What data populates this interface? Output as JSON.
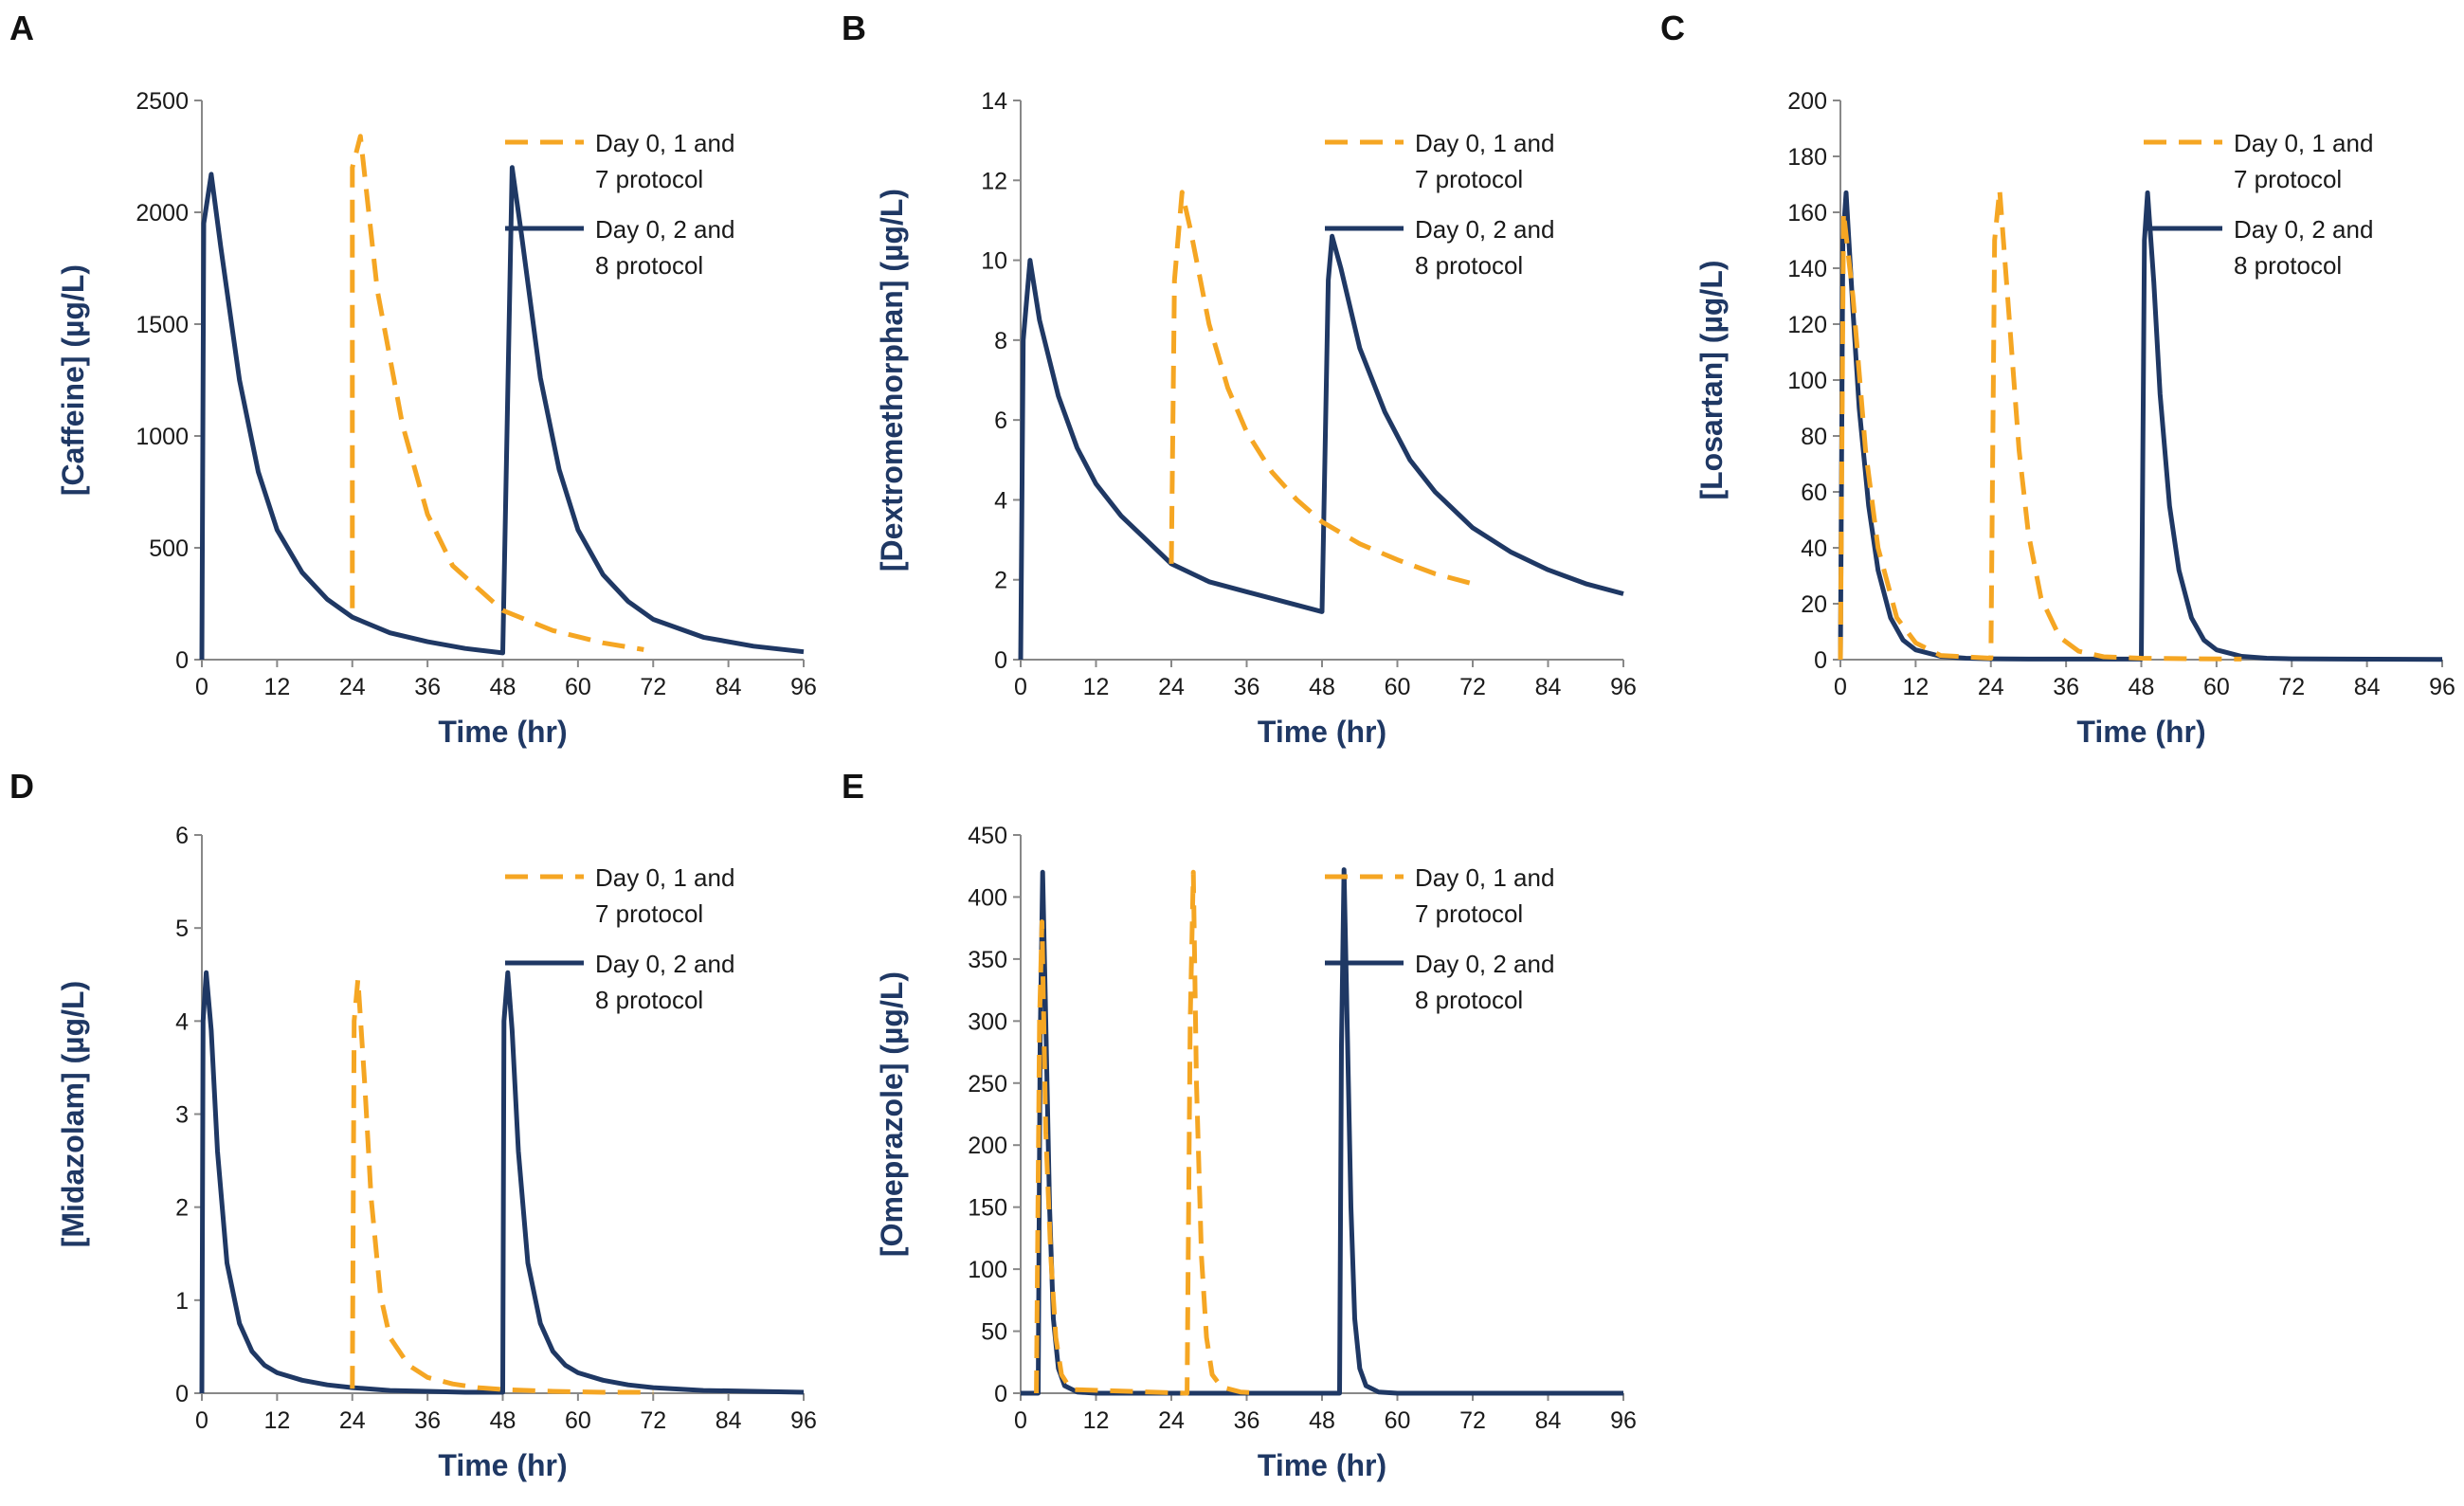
{
  "figure": {
    "colors": {
      "series1": "#F5A623",
      "series2": "#1F3864",
      "axis": "#888888",
      "text": "#1a1a1a",
      "label": "#1F3864"
    }
  },
  "chart_data": [
    {
      "panel": "A",
      "type": "line",
      "xlabel": "Time (hr)",
      "ylabel": "[Caffeine] (µg/L)",
      "xlim": [
        0,
        96
      ],
      "ylim": [
        0,
        2500
      ],
      "xticks": [
        0,
        12,
        24,
        36,
        48,
        60,
        72,
        84,
        96
      ],
      "yticks": [
        0,
        500,
        1000,
        1500,
        2000,
        2500
      ],
      "legend": [
        "Day 0, 1 and 7 protocol",
        "Day 0, 2 and 8 protocol"
      ],
      "legend_lines": [
        [
          "Day 0, 1 and",
          "7 protocol"
        ],
        [
          "Day 0, 2 and",
          "8 protocol"
        ]
      ],
      "series": [
        {
          "name": "Day 0, 1 and 7 protocol",
          "style": "dashed",
          "x": [
            24,
            24,
            25.3,
            28,
            32,
            36,
            40,
            48,
            56,
            64,
            70.5
          ],
          "y": [
            230,
            2200,
            2340,
            1650,
            1050,
            650,
            420,
            220,
            130,
            75,
            45
          ]
        },
        {
          "name": "Day 0, 2 and 8 protocol",
          "style": "solid",
          "x": [
            0,
            0.3,
            1.5,
            3,
            6,
            9,
            12,
            16,
            20,
            24,
            30,
            36,
            42,
            48,
            48,
            49.5,
            51,
            54,
            57,
            60,
            64,
            68,
            72,
            80,
            88,
            96
          ],
          "y": [
            0,
            1950,
            2170,
            1850,
            1250,
            840,
            580,
            390,
            270,
            190,
            120,
            80,
            50,
            30,
            30,
            2200,
            1900,
            1260,
            850,
            580,
            380,
            260,
            180,
            100,
            60,
            35
          ]
        }
      ]
    },
    {
      "panel": "B",
      "type": "line",
      "xlabel": "Time (hr)",
      "ylabel": "[Dextromethorphan] (µg/L)",
      "xlim": [
        0,
        96
      ],
      "ylim": [
        0,
        14
      ],
      "xticks": [
        0,
        12,
        24,
        36,
        48,
        60,
        72,
        84,
        96
      ],
      "yticks": [
        0,
        2,
        4,
        6,
        8,
        10,
        12,
        14
      ],
      "legend": [
        "Day 0, 1 and 7 protocol",
        "Day 0, 2 and 8 protocol"
      ],
      "legend_lines": [
        [
          "Day 0, 1 and",
          "7 protocol"
        ],
        [
          "Day 0, 2 and",
          "8 protocol"
        ]
      ],
      "series": [
        {
          "name": "Day 0, 1 and 7 protocol",
          "style": "dashed",
          "x": [
            24,
            24.5,
            25.7,
            27,
            30,
            33,
            36,
            40,
            44,
            48,
            54,
            60,
            66,
            72
          ],
          "y": [
            2.4,
            9.5,
            11.7,
            10.8,
            8.4,
            6.8,
            5.7,
            4.7,
            4.0,
            3.45,
            2.9,
            2.5,
            2.15,
            1.9
          ]
        },
        {
          "name": "Day 0, 2 and 8 protocol",
          "style": "solid",
          "x": [
            0,
            0.4,
            1.5,
            3,
            6,
            9,
            12,
            16,
            20,
            24,
            30,
            36,
            42,
            48,
            48,
            49,
            49.6,
            51,
            54,
            58,
            62,
            66,
            72,
            78,
            84,
            90,
            96
          ],
          "y": [
            0,
            8.0,
            10.0,
            8.5,
            6.6,
            5.3,
            4.4,
            3.6,
            3.0,
            2.4,
            1.95,
            1.7,
            1.45,
            1.2,
            1.2,
            9.5,
            10.6,
            9.8,
            7.8,
            6.2,
            5.0,
            4.2,
            3.3,
            2.7,
            2.25,
            1.9,
            1.65
          ]
        }
      ]
    },
    {
      "panel": "C",
      "type": "line",
      "xlabel": "Time (hr)",
      "ylabel": "[Losartan] (µg/L)",
      "xlim": [
        0,
        96
      ],
      "ylim": [
        0,
        200
      ],
      "xticks": [
        0,
        12,
        24,
        36,
        48,
        60,
        72,
        84,
        96
      ],
      "yticks": [
        0,
        20,
        40,
        60,
        80,
        100,
        120,
        140,
        160,
        180,
        200
      ],
      "legend": [
        "Day 0, 1 and 7 protocol",
        "Day 0, 2 and 8 protocol"
      ],
      "legend_lines": [
        [
          "Day 0, 1 and",
          "7 protocol"
        ],
        [
          "Day 0, 2 and",
          "8 protocol"
        ]
      ],
      "series": [
        {
          "name": "Day 0, 1 and 7 protocol",
          "style": "dashed",
          "x": [
            0,
            0.5,
            2,
            4,
            6,
            9,
            12,
            16,
            24,
            24,
            24.6,
            25.4,
            27,
            28.5,
            30,
            32,
            35,
            38,
            42,
            48,
            56,
            64
          ],
          "y": [
            0,
            160,
            130,
            75,
            40,
            15,
            6,
            1.5,
            0.5,
            0.5,
            150,
            168,
            120,
            75,
            45,
            22,
            8,
            3,
            1,
            0.5,
            0.3,
            0.2
          ]
        },
        {
          "name": "Day 0, 2 and 8 protocol",
          "style": "solid",
          "x": [
            0,
            0.4,
            0.9,
            2,
            3,
            4.5,
            6,
            8,
            10,
            12,
            16,
            20,
            24,
            30,
            36,
            42,
            48,
            48,
            48.5,
            49,
            50,
            51,
            52.5,
            54,
            56,
            58,
            60,
            64,
            68,
            72,
            80,
            96
          ],
          "y": [
            0,
            150,
            167,
            125,
            90,
            55,
            32,
            15,
            7,
            3.5,
            1.2,
            0.5,
            0.3,
            0.2,
            0.2,
            0.2,
            0.2,
            0.2,
            150,
            167,
            135,
            95,
            55,
            32,
            15,
            7,
            3.5,
            1.2,
            0.5,
            0.3,
            0.2,
            0.1
          ]
        }
      ]
    },
    {
      "panel": "D",
      "type": "line",
      "xlabel": "Time (hr)",
      "ylabel": "[Midazolam] (µg/L)",
      "xlim": [
        0,
        96
      ],
      "ylim": [
        0,
        6
      ],
      "xticks": [
        0,
        12,
        24,
        36,
        48,
        60,
        72,
        84,
        96
      ],
      "yticks": [
        0,
        1,
        2,
        3,
        4,
        5,
        6
      ],
      "legend": [
        "Day 0, 1 and 7 protocol",
        "Day 0, 2 and 8 protocol"
      ],
      "legend_lines": [
        [
          "Day 0, 1 and",
          "7 protocol"
        ],
        [
          "Day 0, 2 and",
          "8 protocol"
        ]
      ],
      "series": [
        {
          "name": "Day 0, 1 and 7 protocol",
          "style": "dashed",
          "x": [
            24,
            24.3,
            24.9,
            26,
            27,
            28.5,
            30,
            33,
            36,
            40,
            44,
            48,
            56,
            64,
            72
          ],
          "y": [
            0.05,
            4.0,
            4.45,
            3.3,
            2.1,
            1.05,
            0.6,
            0.3,
            0.17,
            0.1,
            0.06,
            0.04,
            0.02,
            0.01,
            0.01
          ]
        },
        {
          "name": "Day 0, 2 and 8 protocol",
          "style": "solid",
          "x": [
            0,
            0.2,
            0.7,
            1.5,
            2.5,
            4,
            6,
            8,
            10,
            12,
            16,
            20,
            24,
            30,
            36,
            42,
            48,
            48,
            48.2,
            48.8,
            49.5,
            50.5,
            52,
            54,
            56,
            58,
            60,
            64,
            68,
            72,
            80,
            88,
            96
          ],
          "y": [
            0,
            4.0,
            4.52,
            3.9,
            2.6,
            1.4,
            0.75,
            0.45,
            0.3,
            0.22,
            0.14,
            0.09,
            0.06,
            0.03,
            0.02,
            0.01,
            0.01,
            0.01,
            4.0,
            4.52,
            3.9,
            2.6,
            1.4,
            0.75,
            0.45,
            0.3,
            0.22,
            0.14,
            0.09,
            0.06,
            0.03,
            0.02,
            0.01
          ]
        }
      ]
    },
    {
      "panel": "E",
      "type": "line",
      "xlabel": "Time (hr)",
      "ylabel": "[Omeprazole] (µg/L)",
      "xlim": [
        0,
        96
      ],
      "ylim": [
        0,
        450
      ],
      "xticks": [
        0,
        12,
        24,
        36,
        48,
        60,
        72,
        84,
        96
      ],
      "yticks": [
        0,
        50,
        100,
        150,
        200,
        250,
        300,
        350,
        400,
        450
      ],
      "legend": [
        "Day 0, 1 and 7 protocol",
        "Day 0, 2 and 8 protocol"
      ],
      "legend_lines": [
        [
          "Day 0, 1 and",
          "7 protocol"
        ],
        [
          "Day 0, 2 and",
          "8 protocol"
        ]
      ],
      "series": [
        {
          "name": "Day 0, 1 and 7 protocol",
          "style": "dashed",
          "x": [
            2.5,
            3.0,
            3.4,
            4.0,
            4.8,
            5.6,
            6.5,
            8,
            26.5,
            27.0,
            27.5,
            28.0,
            28.8,
            29.6,
            30.5,
            32,
            35,
            38
          ],
          "y": [
            0,
            300,
            380,
            210,
            110,
            45,
            15,
            3,
            0,
            300,
            420,
            250,
            110,
            45,
            15,
            5,
            1,
            0
          ]
        },
        {
          "name": "Day 0, 2 and 8 protocol",
          "style": "solid",
          "x": [
            0,
            2.8,
            3.1,
            3.5,
            4.0,
            4.6,
            5.2,
            6.0,
            7,
            9,
            12,
            24,
            36,
            48,
            50.8,
            51.1,
            51.5,
            52.0,
            52.6,
            53.2,
            54.0,
            55,
            57,
            60,
            72,
            84,
            96
          ],
          "y": [
            0,
            0,
            280,
            420,
            300,
            150,
            60,
            20,
            6,
            1,
            0,
            0,
            0,
            0,
            0,
            280,
            422,
            300,
            150,
            60,
            20,
            6,
            1,
            0,
            0,
            0,
            0
          ]
        }
      ]
    }
  ]
}
